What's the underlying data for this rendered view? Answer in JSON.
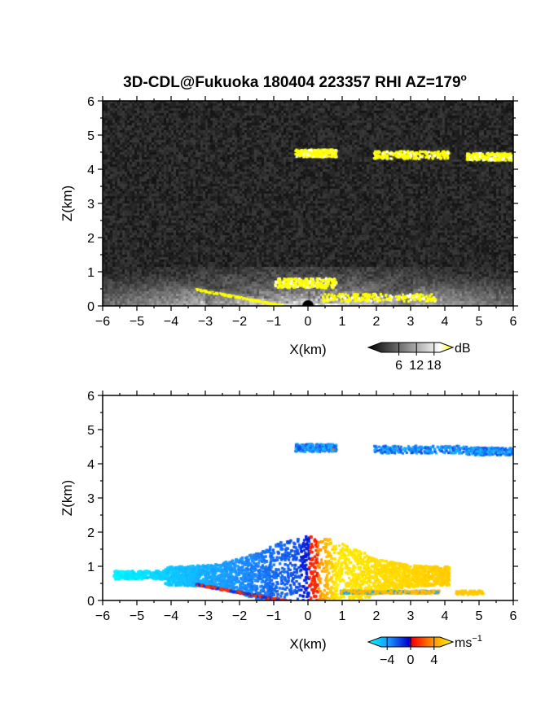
{
  "figure": {
    "title": "3D-CDL@Fukuoka 180404 223357 RHI AZ=179",
    "title_superscript": "o"
  },
  "chart_data": [
    {
      "type": "heatmap",
      "name": "backscatter",
      "xlabel": "X(km)",
      "ylabel": "Z(km)",
      "xlim": [
        -6,
        6
      ],
      "ylim": [
        0,
        6
      ],
      "xticks": [
        "−6",
        "−5",
        "−4",
        "−3",
        "−2",
        "−1",
        "0",
        "1",
        "2",
        "3",
        "4",
        "5",
        "6"
      ],
      "yticks": [
        "0",
        "1",
        "2",
        "3",
        "4",
        "5",
        "6"
      ],
      "background": "#000000",
      "colorbar": {
        "unit": "dB",
        "ticks": [
          "6",
          "12",
          "18"
        ],
        "tick_values": [
          6,
          12,
          18
        ],
        "range": [
          0,
          20
        ],
        "colors": [
          "#000000",
          "#ffffff",
          "#ffff00"
        ]
      },
      "features": [
        {
          "desc": "cloud layer",
          "x_range": [
            -0.4,
            0.8
          ],
          "z": 4.5,
          "color": "#ffff00"
        },
        {
          "desc": "cloud layer",
          "x_range": [
            1.9,
            4.1
          ],
          "z": 4.45,
          "color": "#ffff00"
        },
        {
          "desc": "cloud layer",
          "x_range": [
            4.6,
            6.0
          ],
          "z": 4.4,
          "color": "#ffff00"
        },
        {
          "desc": "boundary layer haze",
          "x_range": [
            -6,
            6
          ],
          "z_top": 1.1,
          "peak_x": 0,
          "peak_z": 0.6
        },
        {
          "desc": "ground clutter",
          "x_range": [
            -3.3,
            -0.6
          ],
          "z_range": [
            0.5,
            0.0
          ],
          "color": "#ffff00"
        },
        {
          "desc": "near-ground return",
          "x_range": [
            0.4,
            3.7
          ],
          "z": 0.28,
          "color": "#ffff00"
        },
        {
          "desc": "strong echo",
          "x_range": [
            -1.0,
            0.8
          ],
          "z": 0.7,
          "color": "#ffff00"
        }
      ]
    },
    {
      "type": "heatmap",
      "name": "doppler velocity",
      "xlabel": "X(km)",
      "ylabel": "Z(km)",
      "xlim": [
        -6,
        6
      ],
      "ylim": [
        0,
        6
      ],
      "xticks": [
        "−6",
        "−5",
        "−4",
        "−3",
        "−2",
        "−1",
        "0",
        "1",
        "2",
        "3",
        "4",
        "5",
        "6"
      ],
      "yticks": [
        "0",
        "1",
        "2",
        "3",
        "4",
        "5",
        "6"
      ],
      "background": "#ffffff",
      "colorbar": {
        "unit": "ms",
        "unit_superscript": "−1",
        "ticks": [
          "−4",
          "0",
          "4"
        ],
        "tick_values": [
          -4,
          0,
          4
        ],
        "range": [
          -5,
          5
        ],
        "colors": [
          "#00ffff",
          "#1e90ff",
          "#0000cc",
          "#ff0000",
          "#ff8c00",
          "#ffff00"
        ]
      },
      "features": [
        {
          "desc": "cloud layer",
          "x_range": [
            -0.4,
            0.8
          ],
          "z": 4.5,
          "velocity": -2.5
        },
        {
          "desc": "cloud layer",
          "x_range": [
            1.9,
            4.6
          ],
          "z": 4.45,
          "velocity": -2.5
        },
        {
          "desc": "cloud layer",
          "x_range": [
            4.6,
            6.0
          ],
          "z": 4.4,
          "velocity": -2.5
        },
        {
          "desc": "approaching flow",
          "x_range": [
            -5.7,
            0
          ],
          "z_center": 0.75,
          "velocity_range": [
            -4.5,
            -0.5
          ]
        },
        {
          "desc": "receding flow",
          "x_range": [
            0,
            4.1
          ],
          "z_center": 0.8,
          "velocity_range": [
            0.5,
            4.5
          ]
        }
      ]
    }
  ]
}
